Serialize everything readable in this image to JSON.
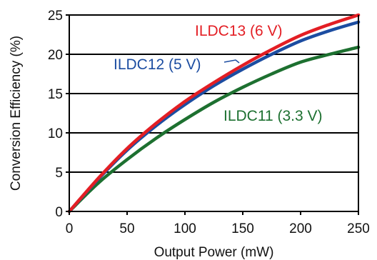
{
  "chart_data": {
    "type": "line",
    "title": "",
    "xlabel": "Output Power (mW)",
    "ylabel": "Conversion Efficiency (%)",
    "xlim": [
      0,
      250
    ],
    "ylim": [
      0,
      25
    ],
    "x_ticks": [
      "0",
      "50",
      "100",
      "150",
      "200",
      "250"
    ],
    "y_ticks": [
      "0",
      "5",
      "10",
      "15",
      "20",
      "25"
    ],
    "grid": "horizontal",
    "series": [
      {
        "name": "ILDC13 (6 V)",
        "color": "#e31e24",
        "x": [
          0,
          25,
          50,
          75,
          100,
          125,
          150,
          175,
          200,
          225,
          250
        ],
        "y": [
          0,
          4.2,
          8.0,
          11.2,
          14.0,
          16.4,
          18.6,
          20.6,
          22.4,
          23.8,
          25.0
        ]
      },
      {
        "name": "ILDC12 (5 V)",
        "color": "#1c4da1",
        "x": [
          0,
          25,
          50,
          75,
          100,
          125,
          150,
          175,
          200,
          225,
          250
        ],
        "y": [
          0,
          4.1,
          7.8,
          10.9,
          13.6,
          16.0,
          18.1,
          20.0,
          21.7,
          23.0,
          24.1
        ]
      },
      {
        "name": "ILDC11 (3.3 V)",
        "color": "#1d7030",
        "x": [
          0,
          25,
          50,
          75,
          100,
          125,
          150,
          175,
          200,
          225,
          250
        ],
        "y": [
          0,
          3.6,
          6.6,
          9.3,
          11.7,
          13.9,
          15.8,
          17.5,
          19.0,
          20.0,
          20.9
        ]
      }
    ]
  }
}
